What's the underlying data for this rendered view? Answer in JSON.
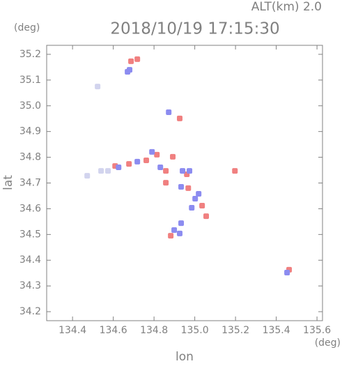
{
  "chart_data": {
    "type": "scatter",
    "title": "2018/10/19 17:15:30",
    "subtitle": "ALT(km) 2.0",
    "y_unit": "(deg)",
    "x_unit": "(deg)",
    "x_label": "lon",
    "y_label": "lat",
    "xlim": [
      134.273,
      135.627
    ],
    "ylim": [
      34.165,
      35.235
    ],
    "xticks": [
      134.4,
      134.6,
      134.8,
      {
        "value": 135.0,
        "label": "135.0"
      },
      135.2,
      135.4,
      135.6
    ],
    "yticks": [
      34.2,
      34.3,
      34.4,
      34.5,
      34.6,
      34.7,
      34.8,
      34.9,
      {
        "value": 35.0,
        "label": "35.0"
      },
      35.1,
      35.2
    ],
    "series": [
      {
        "color": "#f08080",
        "x": [
          134.687,
          134.718,
          134.926,
          134.609,
          134.677,
          134.762,
          134.814,
          134.858,
          134.892,
          134.961,
          134.858,
          134.968,
          135.036,
          135.056,
          135.197,
          134.882,
          135.463
        ],
        "y": [
          35.173,
          35.181,
          34.951,
          34.766,
          34.774,
          34.788,
          34.81,
          34.747,
          34.802,
          34.734,
          34.701,
          34.68,
          34.612,
          34.571,
          34.747,
          34.495,
          34.363
        ]
      },
      {
        "color": "#8c8cf0",
        "x": [
          134.67,
          134.68,
          134.872,
          134.626,
          134.718,
          134.79,
          134.831,
          134.94,
          134.974,
          134.933,
          135.002,
          134.985,
          135.019,
          134.899,
          134.926,
          134.933,
          135.453
        ],
        "y": [
          35.132,
          35.14,
          34.975,
          34.761,
          34.783,
          34.821,
          34.761,
          34.747,
          34.747,
          34.685,
          34.639,
          34.604,
          34.658,
          34.517,
          34.504,
          34.544,
          34.352
        ]
      },
      {
        "color": "#d2d4ee",
        "x": [
          134.523,
          134.472,
          134.54,
          134.574
        ],
        "y": [
          35.075,
          34.728,
          34.747,
          34.747
        ]
      }
    ]
  }
}
